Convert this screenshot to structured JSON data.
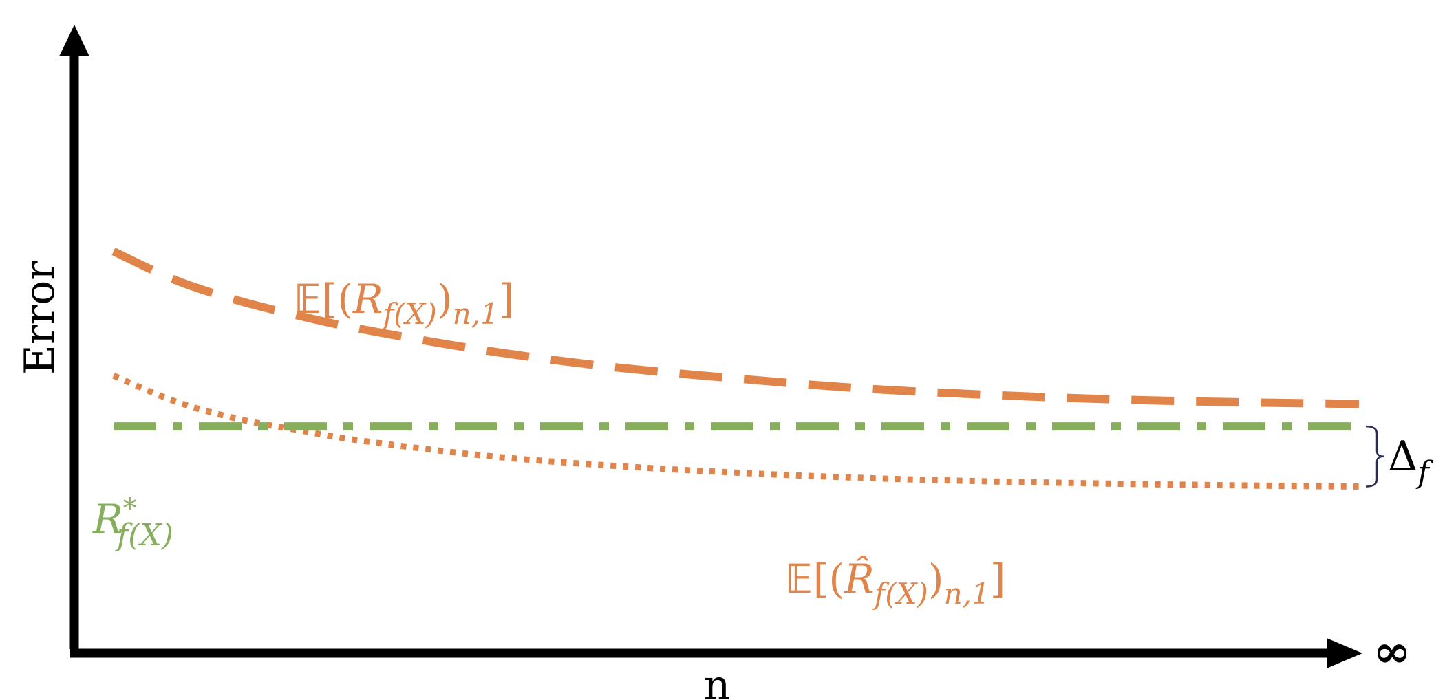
{
  "chart_data": {
    "type": "line",
    "title": "",
    "xlabel": "n",
    "ylabel": "Error",
    "x_end_label": "∞",
    "colors": {
      "train": "#E0844A",
      "bayes": "#86AE5C",
      "axis": "#000000",
      "brace": "#2B2B55"
    },
    "series": [
      {
        "key": "test_risk",
        "style": "dashed",
        "color": "#E0844A",
        "label": {
          "bb": "𝔼",
          "open": "[(",
          "sym": "R",
          "sub": "f(X)",
          "close_paren": ")",
          "sub2": "n,1",
          "close": "]"
        },
        "x": [
          0,
          0.05,
          0.1,
          0.15,
          0.2,
          0.3,
          0.4,
          0.5,
          0.6,
          0.7,
          0.8,
          0.9,
          1.0
        ],
        "y": [
          0.66,
          0.61,
          0.575,
          0.548,
          0.525,
          0.488,
          0.46,
          0.44,
          0.423,
          0.412,
          0.404,
          0.399,
          0.396
        ]
      },
      {
        "key": "train_risk",
        "style": "dotted",
        "color": "#E0844A",
        "label": {
          "bb": "𝔼",
          "open": "[(",
          "sym": "R̂",
          "sub": "f(X)",
          "close_paren": ")",
          "sub2": "n,1",
          "close": "]"
        },
        "x": [
          0,
          0.05,
          0.1,
          0.15,
          0.2,
          0.3,
          0.4,
          0.5,
          0.6,
          0.7,
          0.8,
          0.9,
          1.0
        ],
        "y": [
          0.445,
          0.4,
          0.37,
          0.35,
          0.332,
          0.306,
          0.289,
          0.277,
          0.268,
          0.262,
          0.258,
          0.255,
          0.253
        ]
      },
      {
        "key": "bayes_risk",
        "style": "dashdot",
        "color": "#86AE5C",
        "label": {
          "sym": "R",
          "sup": "*",
          "sub": "f(X)"
        },
        "x": [
          0,
          1.0
        ],
        "y": [
          0.357,
          0.357
        ]
      }
    ],
    "annotations": [
      {
        "key": "gap",
        "text": "Δ",
        "sub": "f",
        "between": [
          "bayes_risk",
          "train_risk"
        ],
        "at_x": 1.0
      }
    ],
    "xlim": [
      0,
      1.0
    ],
    "ylim": [
      0,
      1.0
    ],
    "grid": false,
    "legend": "none"
  }
}
